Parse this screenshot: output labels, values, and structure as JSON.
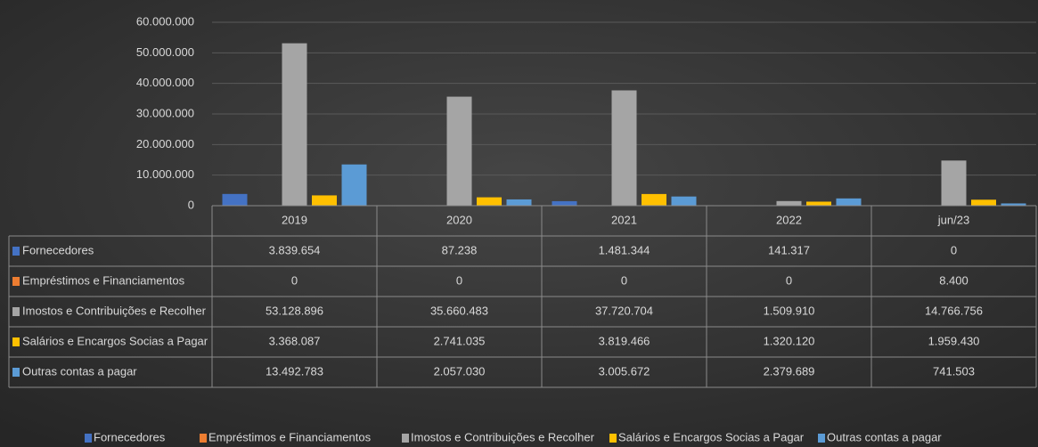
{
  "chart_data": {
    "type": "bar",
    "categories": [
      "2019",
      "2020",
      "2021",
      "2022",
      "jun/23"
    ],
    "series": [
      {
        "name": "Fornecedores",
        "color": "#4472c4",
        "values": [
          3839654,
          87238,
          1481344,
          141317,
          0
        ],
        "value_labels": [
          "3.839.654",
          "87.238",
          "1.481.344",
          "141.317",
          "0"
        ]
      },
      {
        "name": "Empréstimos e Financiamentos",
        "color": "#ed7d31",
        "values": [
          0,
          0,
          0,
          0,
          8400
        ],
        "value_labels": [
          "0",
          "0",
          "0",
          "0",
          "8.400"
        ]
      },
      {
        "name": "Imostos e Contribuições e Recolher",
        "color": "#a5a5a5",
        "values": [
          53128896,
          35660483,
          37720704,
          1509910,
          14766756
        ],
        "value_labels": [
          "53.128.896",
          "35.660.483",
          "37.720.704",
          "1.509.910",
          "14.766.756"
        ]
      },
      {
        "name": "Salários e Encargos Socias a Pagar",
        "color": "#ffc000",
        "values": [
          3368087,
          2741035,
          3819466,
          1320120,
          1959430
        ],
        "value_labels": [
          "3.368.087",
          "2.741.035",
          "3.819.466",
          "1.320.120",
          "1.959.430"
        ]
      },
      {
        "name": "Outras contas a pagar",
        "color": "#5b9bd5",
        "values": [
          13492783,
          2057030,
          3005672,
          2379689,
          741503
        ],
        "value_labels": [
          "13.492.783",
          "2.057.030",
          "3.005.672",
          "2.379.689",
          "741.503"
        ]
      }
    ],
    "ylim": [
      0,
      60000000
    ],
    "yticks": [
      0,
      {
        "value": 10000000,
        "label": "10.000.000"
      },
      {
        "value": 20000000,
        "label": "20.000.000"
      },
      {
        "value": 30000000,
        "label": "30.000.000"
      },
      {
        "value": 40000000,
        "label": "40.000.000"
      },
      {
        "value": 50000000,
        "label": "50.000.000"
      },
      {
        "value": 60000000,
        "label": "60.000.000"
      }
    ],
    "grid": true
  }
}
